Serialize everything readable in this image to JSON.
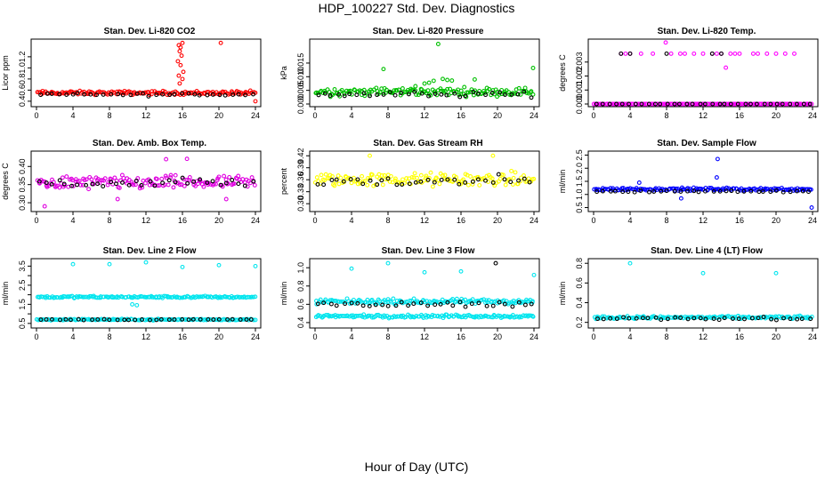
{
  "title": "HDP_100227  Std. Dev. Diagnostics",
  "x_axis_label": "Hour of Day (UTC)",
  "chart_data": [
    {
      "type": "scatter",
      "title": "Stan. Dev. Li-820 CO2",
      "ylabel": "Licor ppm",
      "color": "#ff0000",
      "xlim": [
        0,
        24
      ],
      "ylim": [
        0.35,
        1.47
      ],
      "xticks": [
        0,
        4,
        8,
        12,
        16,
        20,
        24
      ],
      "yticks": [
        0.4,
        0.6,
        0.8,
        1.0,
        1.2
      ],
      "yticklabels": [
        "0.4",
        "0.6",
        "0.8",
        "1.0",
        "1.2"
      ],
      "band": {
        "center": 0.55,
        "spread": 0.05
      },
      "black_center": 0.52,
      "black_spread": 0.04,
      "outliers": [
        [
          15.6,
          1.41
        ],
        [
          15.8,
          1.37
        ],
        [
          16.0,
          1.45
        ],
        [
          15.7,
          1.3
        ],
        [
          15.9,
          1.22
        ],
        [
          15.5,
          1.12
        ],
        [
          15.8,
          1.05
        ],
        [
          16.1,
          0.93
        ],
        [
          15.6,
          0.86
        ],
        [
          16.0,
          0.8
        ],
        [
          15.7,
          0.72
        ],
        [
          20.2,
          1.45
        ],
        [
          24.0,
          0.4
        ]
      ]
    },
    {
      "type": "scatter",
      "title": "Stan. Dev. Li-820 Pressure",
      "ylabel": "kPa",
      "color": "#00c000",
      "xlim": [
        0,
        24
      ],
      "ylim": [
        0.0,
        0.0228
      ],
      "xticks": [
        0,
        4,
        8,
        12,
        16,
        20,
        24
      ],
      "yticks": [
        0.0,
        0.005,
        0.01,
        0.015
      ],
      "yticklabels": [
        "0.000",
        "0.005",
        "0.010",
        "0.015"
      ],
      "band": {
        "center": 0.0045,
        "spread": 0.0022
      },
      "black_center": 0.0035,
      "black_spread": 0.0015,
      "outliers": [
        [
          13.5,
          0.022
        ],
        [
          11.0,
          0.0065
        ],
        [
          12.0,
          0.0075
        ],
        [
          13.0,
          0.0085
        ],
        [
          14.0,
          0.0092
        ],
        [
          15.0,
          0.0086
        ],
        [
          10.5,
          0.0055
        ],
        [
          12.5,
          0.0078
        ],
        [
          14.5,
          0.0088
        ],
        [
          23.9,
          0.0132
        ],
        [
          7.5,
          0.0128
        ],
        [
          17.5,
          0.009
        ]
      ]
    },
    {
      "type": "scatter",
      "title": "Stan. Dev. Li-820 Temp.",
      "ylabel": "degrees C",
      "color": "#ff00ff",
      "xlim": [
        0,
        24
      ],
      "ylim": [
        0.0,
        0.00445
      ],
      "xticks": [
        0,
        4,
        8,
        12,
        16,
        20,
        24
      ],
      "yticks": [
        0.0,
        0.001,
        0.002,
        0.003
      ],
      "yticklabels": [
        "0.000",
        "0.001",
        "0.002",
        "0.003"
      ],
      "band": {
        "center": 0.0,
        "spread": 0.0
      },
      "black_center": 0.0,
      "black_spread": 0.0,
      "outliers": [
        [
          7.9,
          0.0044
        ],
        [
          14.5,
          0.0026
        ],
        [
          3.0,
          0.0036
        ],
        [
          4.0,
          0.0036
        ],
        [
          5.2,
          0.0036
        ],
        [
          6.5,
          0.0036
        ],
        [
          8.5,
          0.0036
        ],
        [
          9.5,
          0.0036
        ],
        [
          11.0,
          0.0036
        ],
        [
          12.0,
          0.0036
        ],
        [
          13.0,
          0.0036
        ],
        [
          14.0,
          0.0036
        ],
        [
          15.0,
          0.0036
        ],
        [
          16.0,
          0.0036
        ],
        [
          17.5,
          0.0036
        ],
        [
          19.0,
          0.0036
        ],
        [
          20.0,
          0.0036
        ],
        [
          22.0,
          0.0036
        ],
        [
          3.5,
          0.0036
        ],
        [
          10.0,
          0.0036
        ],
        [
          13.5,
          0.0036
        ],
        [
          15.5,
          0.0036
        ],
        [
          18.0,
          0.0036
        ],
        [
          21.0,
          0.0036
        ]
      ],
      "black_outliers": [
        [
          3.0,
          0.0036
        ],
        [
          4.0,
          0.0036
        ],
        [
          8.0,
          0.0036
        ],
        [
          13.0,
          0.0036
        ],
        [
          14.0,
          0.0036
        ]
      ]
    },
    {
      "type": "scatter",
      "title": "Stan. Dev. Amb. Box Temp.",
      "ylabel": "degrees C",
      "color": "#e000e0",
      "xlim": [
        0,
        24
      ],
      "ylim": [
        0.283,
        0.435
      ],
      "xticks": [
        0,
        4,
        8,
        12,
        16,
        20,
        24
      ],
      "yticks": [
        0.3,
        0.35,
        0.4
      ],
      "yticklabels": [
        "0.30",
        "0.35",
        "0.40"
      ],
      "band": {
        "center": 0.355,
        "spread": 0.028
      },
      "black_center": 0.355,
      "black_spread": 0.02,
      "outliers": [
        [
          0.9,
          0.29
        ],
        [
          14.2,
          0.42
        ],
        [
          16.5,
          0.421
        ],
        [
          8.9,
          0.31
        ],
        [
          20.8,
          0.31
        ]
      ]
    },
    {
      "type": "scatter",
      "title": "Stan. Dev. Gas Stream RH",
      "ylabel": "percent",
      "color": "#ffff00",
      "xlim": [
        0,
        24
      ],
      "ylim": [
        0.287,
        0.425
      ],
      "xticks": [
        0,
        4,
        8,
        12,
        16,
        20,
        24
      ],
      "yticks": [
        0.3,
        0.33,
        0.36,
        0.39,
        0.42
      ],
      "yticklabels": [
        "0.30",
        "0.33",
        "0.36",
        "0.39",
        "0.42"
      ],
      "band": {
        "center": 0.36,
        "spread": 0.025
      },
      "black_center": 0.355,
      "black_spread": 0.022,
      "outliers": [
        [
          6.0,
          0.42
        ],
        [
          19.5,
          0.42
        ]
      ]
    },
    {
      "type": "scatter",
      "title": "Stan. Dev. Sample Flow",
      "ylabel": "ml/min",
      "color": "#0000ff",
      "xlim": [
        0,
        24
      ],
      "ylim": [
        0.45,
        2.55
      ],
      "xticks": [
        0,
        4,
        8,
        12,
        16,
        20,
        24
      ],
      "yticks": [
        0.5,
        1.0,
        1.5,
        2.0,
        2.5
      ],
      "yticklabels": [
        "0.5",
        "1.0",
        "1.5",
        "2.0",
        "2.5"
      ],
      "band": {
        "center": 1.2,
        "spread": 0.08
      },
      "black_center": 1.12,
      "black_spread": 0.06,
      "outliers": [
        [
          13.6,
          2.35
        ],
        [
          13.5,
          1.65
        ],
        [
          23.9,
          0.5
        ],
        [
          9.6,
          0.85
        ],
        [
          5.0,
          1.45
        ]
      ]
    },
    {
      "type": "scatter",
      "title": "Stan. Dev. Line 2 Flow",
      "ylabel": "ml/min",
      "color": "#00e5ee",
      "xlim": [
        0,
        24
      ],
      "ylim": [
        0.4,
        3.75
      ],
      "xticks": [
        0,
        4,
        8,
        12,
        16,
        20,
        24
      ],
      "yticks": [
        0.5,
        1.0,
        1.5,
        2.0,
        2.5,
        3.0,
        3.5
      ],
      "yticklabels": [
        "0.5",
        "",
        "1.5",
        "",
        "2.5",
        "",
        "3.5"
      ],
      "band": {
        "center": 1.88,
        "spread": 0.08
      },
      "black_center": 0.7,
      "black_spread": 0.04,
      "band2": {
        "center": 0.7,
        "spread": 0.05
      },
      "outliers": [
        [
          4.0,
          3.6
        ],
        [
          8.0,
          3.6
        ],
        [
          12.0,
          3.7
        ],
        [
          16.0,
          3.45
        ],
        [
          20.0,
          3.55
        ],
        [
          24.0,
          3.5
        ],
        [
          10.5,
          1.5
        ],
        [
          11.0,
          1.45
        ]
      ]
    },
    {
      "type": "scatter",
      "title": "Stan. Dev. Line 3 Flow",
      "ylabel": "ml/min",
      "color": "#00e5ee",
      "xlim": [
        0,
        24
      ],
      "ylim": [
        0.37,
        1.07
      ],
      "xticks": [
        0,
        4,
        8,
        12,
        16,
        20,
        24
      ],
      "yticks": [
        0.4,
        0.6,
        0.8,
        1.0
      ],
      "yticklabels": [
        "0.4",
        "0.6",
        "0.8",
        "1.0"
      ],
      "band": {
        "center": 0.63,
        "spread": 0.04
      },
      "black_center": 0.6,
      "black_spread": 0.05,
      "band2": {
        "center": 0.47,
        "spread": 0.025
      },
      "outliers": [
        [
          4.0,
          0.99
        ],
        [
          8.0,
          1.05
        ],
        [
          12.0,
          0.95
        ],
        [
          16.0,
          0.96
        ],
        [
          24.0,
          0.92
        ]
      ],
      "black_outliers": [
        [
          19.8,
          1.05
        ]
      ]
    },
    {
      "type": "scatter",
      "title": "Stan. Dev. Line 4 (LT) Flow",
      "ylabel": "ml/min",
      "color": "#00e5ee",
      "xlim": [
        0,
        24
      ],
      "ylim": [
        0.17,
        0.82
      ],
      "xticks": [
        0,
        4,
        8,
        12,
        16,
        20,
        24
      ],
      "yticks": [
        0.2,
        0.4,
        0.6,
        0.8
      ],
      "yticklabels": [
        "0.2",
        "0.4",
        "0.6",
        "0.8"
      ],
      "band": {
        "center": 0.25,
        "spread": 0.02
      },
      "black_center": 0.24,
      "black_spread": 0.02,
      "outliers": [
        [
          4.0,
          0.8
        ],
        [
          12.0,
          0.7
        ],
        [
          20.0,
          0.7
        ]
      ]
    }
  ]
}
